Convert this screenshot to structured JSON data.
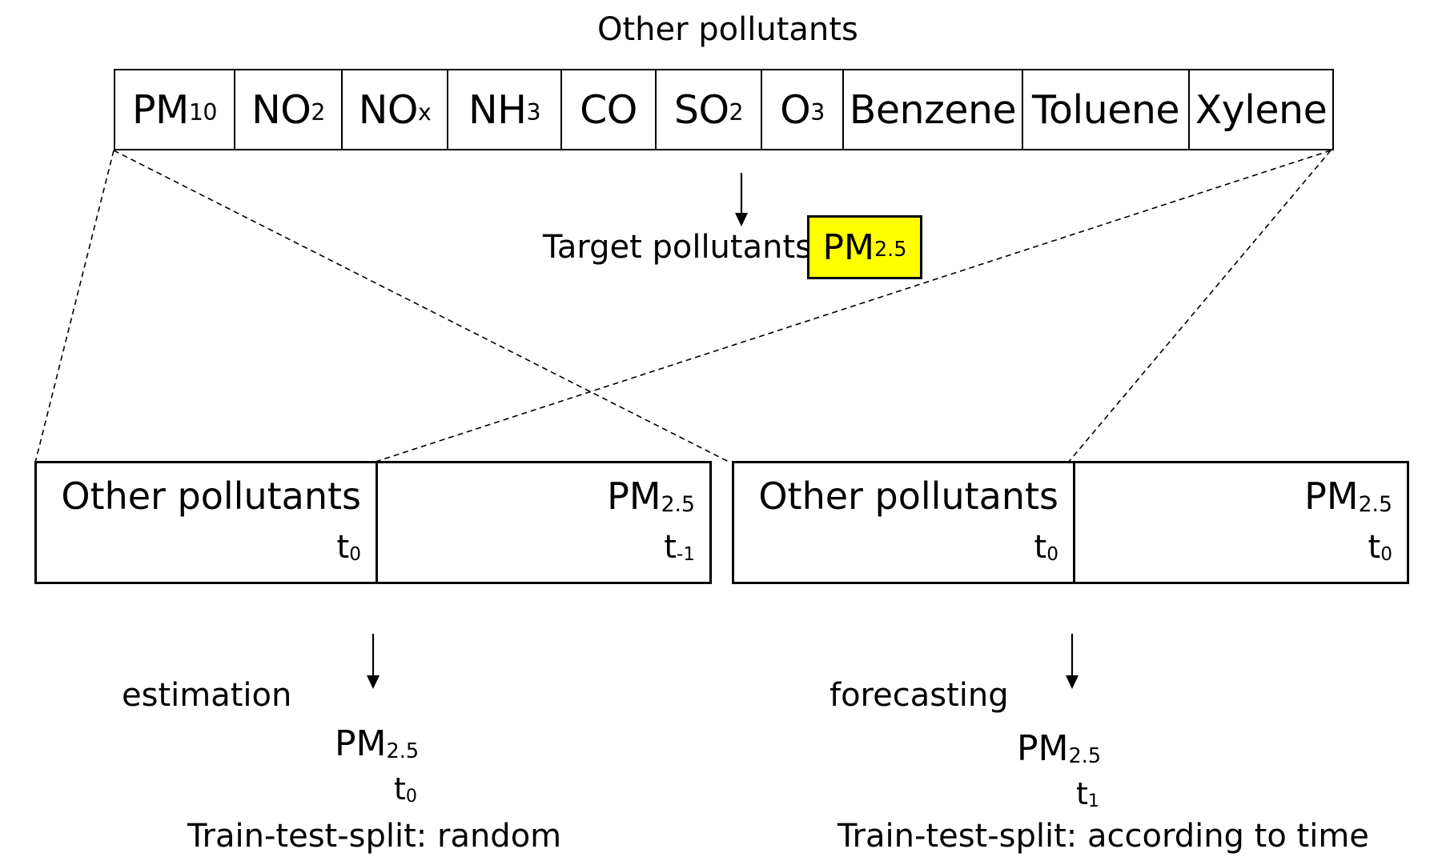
{
  "top": {
    "title": "Other pollutants",
    "pollutants": [
      {
        "base": "PM",
        "sub": "10"
      },
      {
        "base": "NO",
        "sub": "2"
      },
      {
        "base": "NO",
        "sub": "x"
      },
      {
        "base": "NH",
        "sub": "3"
      },
      {
        "base": "CO",
        "sub": ""
      },
      {
        "base": "SO",
        "sub": "2"
      },
      {
        "base": "O",
        "sub": "3"
      },
      {
        "base": "Benzene",
        "sub": ""
      },
      {
        "base": "Toluene",
        "sub": ""
      },
      {
        "base": "Xylene",
        "sub": ""
      }
    ]
  },
  "target": {
    "label": "Target pollutants",
    "base": "PM",
    "sub": "2.5",
    "highlight_color": "#ffff00"
  },
  "left": {
    "inputs_label": "Other pollutants",
    "inputs_time_base": "t",
    "inputs_time_sub": "0",
    "target_base": "PM",
    "target_sub": "2.5",
    "target_time_base": "t",
    "target_time_sub": "-1",
    "method": "estimation",
    "result_base": "PM",
    "result_sub": "2.5",
    "result_time_base": "t",
    "result_time_sub": "0",
    "split": "Train-test-split: random"
  },
  "right": {
    "inputs_label": "Other pollutants",
    "inputs_time_base": "t",
    "inputs_time_sub": "0",
    "target_base": "PM",
    "target_sub": "2.5",
    "target_time_base": "t",
    "target_time_sub": "0",
    "method": "forecasting",
    "result_base": "PM",
    "result_sub": "2.5",
    "result_time_base": "t",
    "result_time_sub": "1",
    "split": "Train-test-split: according to time"
  }
}
